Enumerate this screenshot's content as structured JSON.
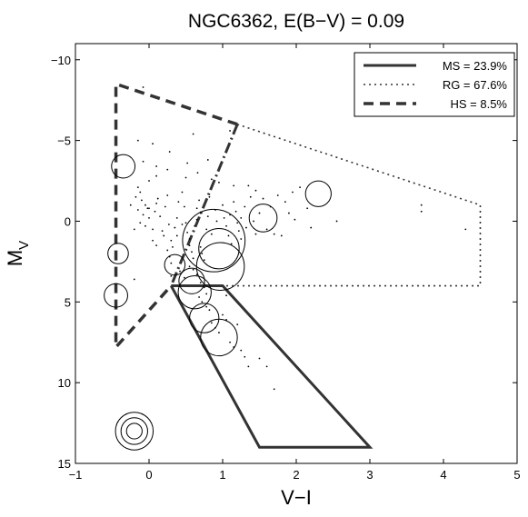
{
  "chart_data": {
    "type": "scatter",
    "title": "NGC6362,  E(B−V) = 0.09",
    "xlabel": "V−I",
    "ylabel_main": "M",
    "ylabel_sub": "V",
    "xlim": [
      -1,
      5
    ],
    "ylim": [
      -11,
      15
    ],
    "y_inverted": true,
    "xticks": [
      -1,
      0,
      1,
      2,
      3,
      4,
      5
    ],
    "xtick_labels": [
      "−1",
      "0",
      "1",
      "2",
      "3",
      "4",
      "5"
    ],
    "yticks": [
      -10,
      -5,
      0,
      5,
      10,
      15
    ],
    "ytick_labels": [
      "−10",
      "−5",
      "0",
      "5",
      "10",
      "15"
    ],
    "grid": false,
    "legend_position": "top-right",
    "regions": [
      {
        "name": "MS",
        "label": "MS = 23.9%",
        "style": "solid",
        "color": "#333333",
        "polygon": [
          [
            0.3,
            4.0
          ],
          [
            1.0,
            4.0
          ],
          [
            3.0,
            14.0
          ],
          [
            1.5,
            14.0
          ],
          [
            0.3,
            4.0
          ]
        ]
      },
      {
        "name": "RG",
        "label": "RG = 67.6%",
        "style": "dotted",
        "color": "#333333",
        "polygon": [
          [
            1.2,
            -6.0
          ],
          [
            4.5,
            -1.0
          ],
          [
            4.5,
            4.0
          ],
          [
            0.3,
            4.0
          ]
        ]
      },
      {
        "name": "HS",
        "label": "HS = 8.5%",
        "style": "dashed",
        "color": "#333333",
        "polygon": [
          [
            1.2,
            -6.0
          ],
          [
            -0.45,
            -8.5
          ],
          [
            -0.45,
            7.8
          ],
          [
            0.3,
            4.0
          ]
        ]
      }
    ],
    "dashdot_divider": [
      [
        1.2,
        -6.0
      ],
      [
        0.3,
        4.0
      ]
    ],
    "circles": [
      {
        "x": -0.35,
        "y": -3.4,
        "r": 0.22
      },
      {
        "x": -0.42,
        "y": 2.0,
        "r": 0.18
      },
      {
        "x": -0.45,
        "y": 4.6,
        "r": 0.22
      },
      {
        "x": 0.35,
        "y": 2.7,
        "r": 0.18
      },
      {
        "x": 0.58,
        "y": 3.7,
        "r": 0.25
      },
      {
        "x": 0.62,
        "y": 4.4,
        "r": 0.35
      },
      {
        "x": 0.75,
        "y": 6.0,
        "r": 0.3
      },
      {
        "x": 0.88,
        "y": 1.2,
        "r": 0.75
      },
      {
        "x": 0.95,
        "y": 1.7,
        "r": 0.45
      },
      {
        "x": 0.97,
        "y": 2.8,
        "r": 0.55
      },
      {
        "x": 0.95,
        "y": 7.2,
        "r": 0.4
      },
      {
        "x": 1.55,
        "y": -0.2,
        "r": 0.28
      },
      {
        "x": 2.3,
        "y": -1.7,
        "r": 0.25
      }
    ],
    "points": [
      [
        -0.08,
        -8.3
      ],
      [
        -0.15,
        -5.0
      ],
      [
        0.05,
        -4.8
      ],
      [
        0.28,
        -4.3
      ],
      [
        0.52,
        -3.6
      ],
      [
        0.25,
        -3.2
      ],
      [
        -0.08,
        -3.7
      ],
      [
        0.1,
        -3.4
      ],
      [
        0.66,
        -3.0
      ],
      [
        0.8,
        -3.8
      ],
      [
        0.6,
        -5.4
      ],
      [
        1.1,
        -5.6
      ],
      [
        0.5,
        -2.7
      ],
      [
        0.85,
        -2.6
      ],
      [
        0.95,
        -2.4
      ],
      [
        1.15,
        -2.2
      ],
      [
        1.35,
        -2.2
      ],
      [
        1.45,
        -1.9
      ],
      [
        1.55,
        -1.4
      ],
      [
        1.75,
        -1.6
      ],
      [
        1.95,
        -1.8
      ],
      [
        2.05,
        -2.1
      ],
      [
        1.1,
        -0.4
      ],
      [
        1.25,
        -0.2
      ],
      [
        0.7,
        -0.5
      ],
      [
        0.65,
        -0.1
      ],
      [
        0.45,
        0.2
      ],
      [
        0.38,
        0.9
      ],
      [
        0.55,
        1.1
      ],
      [
        -0.15,
        -2.1
      ],
      [
        -0.12,
        -1.8
      ],
      [
        -0.18,
        -1.5
      ],
      [
        -0.1,
        -1.3
      ],
      [
        -0.05,
        -1.0
      ],
      [
        -0.02,
        -0.8
      ],
      [
        -0.15,
        -0.7
      ],
      [
        -0.08,
        -0.4
      ],
      [
        0.0,
        -0.2
      ],
      [
        -0.12,
        0.1
      ],
      [
        -0.05,
        0.3
      ],
      [
        0.05,
        0.5
      ],
      [
        0.08,
        -0.6
      ],
      [
        0.1,
        -1.1
      ],
      [
        0.12,
        -1.4
      ],
      [
        0.15,
        -0.3
      ],
      [
        0.18,
        0.6
      ],
      [
        0.2,
        0.9
      ],
      [
        0.22,
        -0.9
      ],
      [
        0.25,
        -1.6
      ],
      [
        0.27,
        0.2
      ],
      [
        0.3,
        1.2
      ],
      [
        0.32,
        1.6
      ],
      [
        0.35,
        0.4
      ],
      [
        0.38,
        -0.2
      ],
      [
        0.4,
        -1.2
      ],
      [
        0.45,
        -1.8
      ],
      [
        0.48,
        -0.9
      ],
      [
        0.5,
        0.1
      ],
      [
        0.52,
        0.7
      ],
      [
        0.55,
        1.5
      ],
      [
        0.58,
        1.9
      ],
      [
        0.6,
        2.3
      ],
      [
        0.62,
        0.3
      ],
      [
        0.65,
        -0.8
      ],
      [
        0.68,
        -1.3
      ],
      [
        0.7,
        1.6
      ],
      [
        0.72,
        2.0
      ],
      [
        0.75,
        2.4
      ],
      [
        0.78,
        0.5
      ],
      [
        0.8,
        -0.3
      ],
      [
        0.82,
        -1.5
      ],
      [
        0.85,
        0.8
      ],
      [
        0.9,
        -0.7
      ],
      [
        0.92,
        0.0
      ],
      [
        1.0,
        -1.0
      ],
      [
        1.02,
        -0.2
      ],
      [
        1.05,
        0.3
      ],
      [
        1.08,
        0.9
      ],
      [
        1.12,
        1.4
      ],
      [
        1.15,
        -1.2
      ],
      [
        1.18,
        -0.6
      ],
      [
        1.2,
        0.1
      ],
      [
        1.22,
        0.6
      ],
      [
        1.25,
        1.1
      ],
      [
        1.3,
        -0.9
      ],
      [
        1.32,
        0.4
      ],
      [
        1.38,
        -1.5
      ],
      [
        1.42,
        0.0
      ],
      [
        1.45,
        0.8
      ],
      [
        1.5,
        -0.5
      ],
      [
        1.6,
        0.5
      ],
      [
        1.65,
        -0.9
      ],
      [
        1.7,
        0.8
      ],
      [
        1.8,
        0.9
      ],
      [
        1.85,
        -1.2
      ],
      [
        1.9,
        -0.5
      ],
      [
        1.98,
        -0.1
      ],
      [
        2.15,
        -0.8
      ],
      [
        2.2,
        0.4
      ],
      [
        0.25,
        1.8
      ],
      [
        0.28,
        2.2
      ],
      [
        0.3,
        2.6
      ],
      [
        0.42,
        3.1
      ],
      [
        0.48,
        3.5
      ],
      [
        0.55,
        2.8
      ],
      [
        0.6,
        3.0
      ],
      [
        0.65,
        3.3
      ],
      [
        0.7,
        3.8
      ],
      [
        0.75,
        4.1
      ],
      [
        0.68,
        4.7
      ],
      [
        0.72,
        5.0
      ],
      [
        0.78,
        5.3
      ],
      [
        0.82,
        5.5
      ],
      [
        0.85,
        6.3
      ],
      [
        0.9,
        6.6
      ],
      [
        0.95,
        6.9
      ],
      [
        1.0,
        5.8
      ],
      [
        1.05,
        6.1
      ],
      [
        1.1,
        7.5
      ],
      [
        1.15,
        7.8
      ],
      [
        1.2,
        6.4
      ],
      [
        1.25,
        8.0
      ],
      [
        1.3,
        8.4
      ],
      [
        1.35,
        9.0
      ],
      [
        1.5,
        8.5
      ],
      [
        1.6,
        9.0
      ],
      [
        1.7,
        10.4
      ],
      [
        1.05,
        4.6
      ],
      [
        0.78,
        4.5
      ],
      [
        0.1,
        -2.8
      ],
      [
        0.0,
        -2.5
      ],
      [
        -0.25,
        -1.0
      ],
      [
        -0.2,
        0.5
      ],
      [
        0.05,
        1.2
      ],
      [
        0.1,
        1.5
      ],
      [
        -0.2,
        3.6
      ],
      [
        0.3,
        3.4
      ],
      [
        2.55,
        0.0
      ],
      [
        3.7,
        -1.0
      ],
      [
        3.7,
        -0.6
      ],
      [
        4.3,
        0.5
      ],
      [
        0.0,
        -0.8
      ]
    ],
    "ring_marker": {
      "x": -0.2,
      "y": 13.0,
      "radii": [
        0.5,
        0.35,
        0.2
      ]
    }
  }
}
